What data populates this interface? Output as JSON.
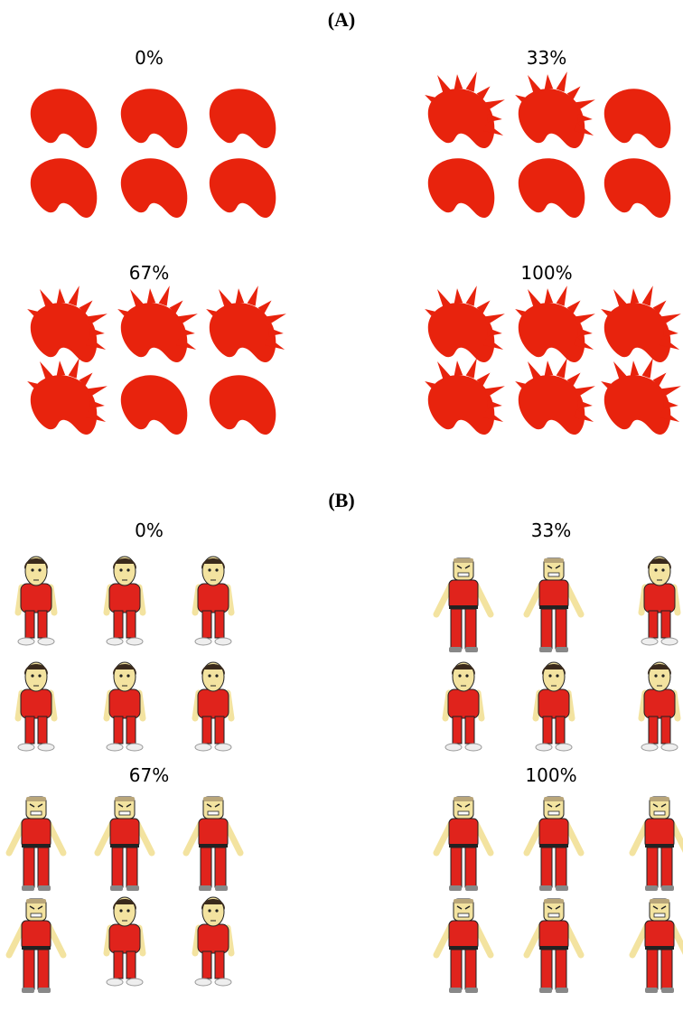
{
  "panels": [
    {
      "label": "(A)",
      "groups": [
        {
          "label": "0%"
        },
        {
          "label": "33%"
        },
        {
          "label": "67%"
        },
        {
          "label": "100%"
        }
      ]
    },
    {
      "label": "(B)",
      "groups": [
        {
          "label": "0%"
        },
        {
          "label": "33%"
        },
        {
          "label": "67%"
        },
        {
          "label": "100%"
        }
      ]
    }
  ]
}
